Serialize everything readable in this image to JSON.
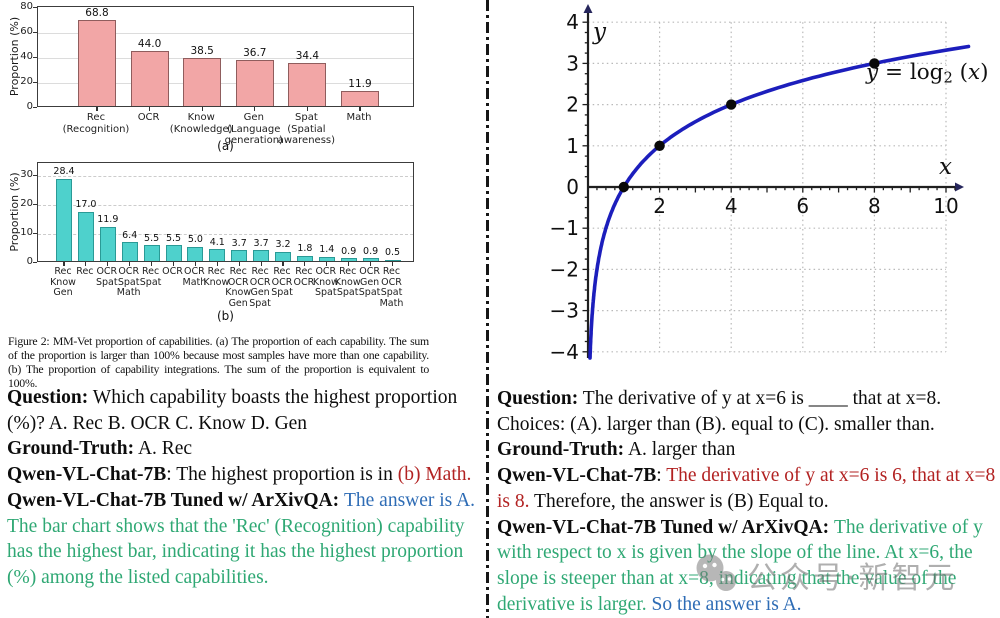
{
  "palette": {
    "red": "#b22222",
    "blue": "#2e6cb5",
    "green": "#2fa874",
    "curve": "#1c1ebc"
  },
  "chart_data": [
    {
      "id": "mmvet-capability-proportions",
      "type": "bar",
      "ylabel": "Proportion (%)",
      "yticks": [
        0,
        20,
        40,
        60,
        80
      ],
      "ylim": [
        0,
        81
      ],
      "gridlines": [
        20,
        40,
        60
      ],
      "grid_style": "solid",
      "categories": [
        "Rec\n(Recognition)",
        "OCR",
        "Know\n(Knowledge)",
        "Gen\n(Language\ngeneration)",
        "Spat\n(Spatial\nawareness)",
        "Math"
      ],
      "values": [
        68.8,
        44.0,
        38.5,
        36.7,
        34.4,
        11.9
      ],
      "bar_fill": "#f2a6a6",
      "bar_edge": "#8f5d5d",
      "axis_label": "(a)"
    },
    {
      "id": "mmvet-capability-integrations",
      "type": "bar",
      "ylabel": "Proportion (%)",
      "yticks": [
        0,
        10,
        20,
        30
      ],
      "ylim": [
        0,
        34.5
      ],
      "gridlines": [
        10,
        20,
        30
      ],
      "grid_style": "dotted",
      "categories": [
        "Rec\nKnow\nGen",
        "Rec",
        "OCR\nSpat",
        "OCR\nSpat\nMath",
        "Rec\nSpat",
        "OCR",
        "OCR\nMath",
        "Rec\nKnow",
        "Rec\nOCR\nKnow\nGen",
        "Rec\nOCR\nGen\nSpat",
        "Rec\nOCR\nSpat",
        "Rec\nOCR",
        "OCR\nKnow\nSpat",
        "Rec\nKnow\nSpat",
        "OCR\nGen\nSpat",
        "Rec\nOCR\nSpat\nMath"
      ],
      "values": [
        28.4,
        17.0,
        11.9,
        6.4,
        5.5,
        5.5,
        5.0,
        4.1,
        3.7,
        3.7,
        3.2,
        1.8,
        1.4,
        0.9,
        0.9,
        0.5
      ],
      "bar_fill": "#4ed1cc",
      "bar_edge": "#2a9a96",
      "axis_label": "(b)"
    },
    {
      "id": "log2-function-plot",
      "type": "line",
      "function": "y = log2(x)",
      "xlabel": "x",
      "ylabel": "y",
      "xlim": [
        0,
        10.5
      ],
      "ylim": [
        -4,
        4
      ],
      "xticks": [
        2,
        4,
        6,
        8,
        10
      ],
      "yticks": [
        -4,
        -3,
        -2,
        -1,
        0,
        1,
        2,
        3,
        4
      ],
      "marked_points": [
        [
          1,
          0
        ],
        [
          2,
          1
        ],
        [
          4,
          2
        ],
        [
          8,
          3
        ]
      ],
      "curve_color": "#1c1ebc",
      "grid": "dotted",
      "equation_segments": [
        {
          "t": "y",
          "c": "i"
        },
        {
          "t": " = log",
          "c": "k"
        },
        {
          "t": "2",
          "c": "sub"
        },
        {
          "t": " (",
          "c": "k"
        },
        {
          "t": "x",
          "c": "i"
        },
        {
          "t": ")",
          "c": "k"
        }
      ]
    }
  ],
  "left": {
    "caption": "Figure 2: MM-Vet proportion of capabilities. (a) The proportion of each capability. The sum of the proportion is larger than 100% because most samples have more than one capability. (b) The proportion of capability integrations. The sum of the proportion is equivalent to 100%.",
    "qa": {
      "question": [
        {
          "t": "Question:",
          "c": "b"
        },
        {
          "t": " Which capability boasts the highest proportion (%)? A. Rec B. OCR C. Know D. Gen",
          "c": "k"
        }
      ],
      "ground_truth": [
        {
          "t": "Ground-Truth:",
          "c": "b"
        },
        {
          "t": " A. Rec",
          "c": "k"
        }
      ],
      "model_base": [
        {
          "t": "Qwen-VL-Chat-7B",
          "c": "b"
        },
        {
          "t": ": The highest proportion is in ",
          "c": "k"
        },
        {
          "t": "(b) Math.",
          "c": "r"
        }
      ],
      "model_tuned": [
        {
          "t": "Qwen-VL-Chat-7B Tuned w/ ArXivQA: ",
          "c": "b"
        },
        {
          "t": "The answer is A. ",
          "c": "bl"
        },
        {
          "t": "The bar chart shows that the 'Rec' (Recognition) capability has the highest bar, indicating it has the highest proportion (%) among the listed capabilities.",
          "c": "g"
        }
      ]
    }
  },
  "right": {
    "qa": {
      "question": [
        {
          "t": "Question:",
          "c": "b"
        },
        {
          "t": " The derivative of y at x=6 is ____ that at x=8. Choices:  (A). larger than (B). equal to (C). smaller than.",
          "c": "k"
        }
      ],
      "ground_truth": [
        {
          "t": "Ground-Truth:",
          "c": "b"
        },
        {
          "t": " A. larger than",
          "c": "k"
        }
      ],
      "model_base": [
        {
          "t": "Qwen-VL-Chat-7B",
          "c": "b"
        },
        {
          "t": ": ",
          "c": "k"
        },
        {
          "t": "The derivative of y at x=6 is 6, that at x=8 is 8.",
          "c": "r"
        },
        {
          "t": " Therefore, the answer is (B) Equal to.",
          "c": "k"
        }
      ],
      "model_tuned": [
        {
          "t": "Qwen-VL-Chat-7B Tuned w/ ArXivQA: ",
          "c": "b"
        },
        {
          "t": "The derivative of y with respect to x is given by the slope of the line. At x=6, the slope is steeper than at x=8, indicating that the value of the derivative is larger. ",
          "c": "g"
        },
        {
          "t": "So the answer is A.",
          "c": "bl"
        }
      ]
    },
    "watermark": {
      "icon": "wechat-logo",
      "text": "公众号·新智元"
    }
  }
}
